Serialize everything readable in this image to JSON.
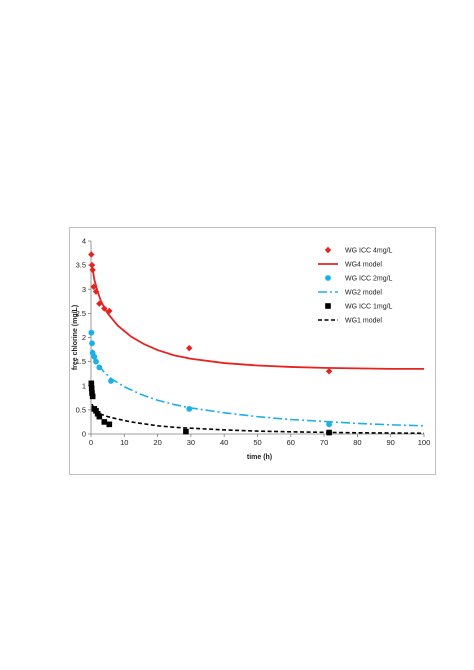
{
  "chart_data": {
    "type": "scatter",
    "xlabel": "time (h)",
    "ylabel": "free chlorine (mg/L)",
    "xlim": [
      0,
      100
    ],
    "ylim": [
      0,
      4
    ],
    "xticks": [
      "0",
      "10",
      "20",
      "30",
      "40",
      "50",
      "60",
      "70",
      "80",
      "90",
      "100"
    ],
    "yticks": [
      "0",
      "0.5",
      "1",
      "1.5",
      "2",
      "2.5",
      "3",
      "3.5",
      "4"
    ],
    "grid": false,
    "legend_position": "top-right",
    "series": [
      {
        "name": "WG ICC 4mg/L",
        "kind": "points",
        "marker": "diamond",
        "color": "#e8221f",
        "points": [
          [
            0.1,
            3.72
          ],
          [
            0.3,
            3.5
          ],
          [
            0.5,
            3.4
          ],
          [
            0.8,
            3.05
          ],
          [
            1.5,
            2.95
          ],
          [
            2.5,
            2.7
          ],
          [
            4,
            2.6
          ],
          [
            5.5,
            2.55
          ],
          [
            29.5,
            1.78
          ],
          [
            71.5,
            1.3
          ]
        ]
      },
      {
        "name": "WG4 model",
        "kind": "line",
        "style": "solid",
        "color": "#e8221f",
        "points": [
          [
            0.3,
            3.5
          ],
          [
            1,
            3.2
          ],
          [
            2,
            2.95
          ],
          [
            3,
            2.75
          ],
          [
            5,
            2.5
          ],
          [
            8,
            2.25
          ],
          [
            12,
            2.02
          ],
          [
            16,
            1.86
          ],
          [
            20,
            1.74
          ],
          [
            25,
            1.63
          ],
          [
            30,
            1.56
          ],
          [
            40,
            1.47
          ],
          [
            50,
            1.42
          ],
          [
            60,
            1.39
          ],
          [
            70,
            1.37
          ],
          [
            80,
            1.36
          ],
          [
            90,
            1.35
          ],
          [
            100,
            1.35
          ]
        ]
      },
      {
        "name": "WG ICC 2mg/L",
        "kind": "points",
        "marker": "circle",
        "color": "#1ab0e8",
        "points": [
          [
            0.1,
            2.1
          ],
          [
            0.3,
            1.88
          ],
          [
            0.5,
            1.68
          ],
          [
            1.0,
            1.6
          ],
          [
            1.5,
            1.5
          ],
          [
            2.5,
            1.38
          ],
          [
            6,
            1.1
          ],
          [
            29.5,
            0.52
          ],
          [
            71.5,
            0.2
          ]
        ]
      },
      {
        "name": "WG2 model",
        "kind": "line",
        "style": "dash-dot",
        "color": "#1ab0e8",
        "points": [
          [
            0.3,
            1.75
          ],
          [
            1,
            1.6
          ],
          [
            2,
            1.45
          ],
          [
            4,
            1.28
          ],
          [
            6,
            1.15
          ],
          [
            10,
            0.98
          ],
          [
            15,
            0.82
          ],
          [
            20,
            0.7
          ],
          [
            25,
            0.61
          ],
          [
            30,
            0.54
          ],
          [
            40,
            0.44
          ],
          [
            50,
            0.36
          ],
          [
            60,
            0.3
          ],
          [
            70,
            0.26
          ],
          [
            80,
            0.22
          ],
          [
            90,
            0.19
          ],
          [
            100,
            0.17
          ]
        ]
      },
      {
        "name": "WG ICC 1mg/L",
        "kind": "points",
        "marker": "square",
        "color": "#000000",
        "points": [
          [
            0.1,
            1.05
          ],
          [
            0.2,
            0.95
          ],
          [
            0.3,
            0.85
          ],
          [
            0.5,
            0.78
          ],
          [
            1,
            0.52
          ],
          [
            1.5,
            0.48
          ],
          [
            2,
            0.42
          ],
          [
            2.5,
            0.36
          ],
          [
            4,
            0.25
          ],
          [
            5.5,
            0.2
          ],
          [
            28.5,
            0.05
          ],
          [
            71.5,
            0.03
          ]
        ]
      },
      {
        "name": "WG1 model",
        "kind": "line",
        "style": "dashed",
        "color": "#000000",
        "points": [
          [
            0.3,
            0.62
          ],
          [
            1,
            0.52
          ],
          [
            2,
            0.45
          ],
          [
            3,
            0.41
          ],
          [
            5,
            0.36
          ],
          [
            8,
            0.31
          ],
          [
            12,
            0.25
          ],
          [
            16,
            0.21
          ],
          [
            20,
            0.17
          ],
          [
            25,
            0.14
          ],
          [
            30,
            0.12
          ],
          [
            40,
            0.085
          ],
          [
            50,
            0.06
          ],
          [
            60,
            0.045
          ],
          [
            70,
            0.035
          ],
          [
            80,
            0.025
          ],
          [
            90,
            0.02
          ],
          [
            100,
            0.015
          ]
        ]
      }
    ]
  }
}
